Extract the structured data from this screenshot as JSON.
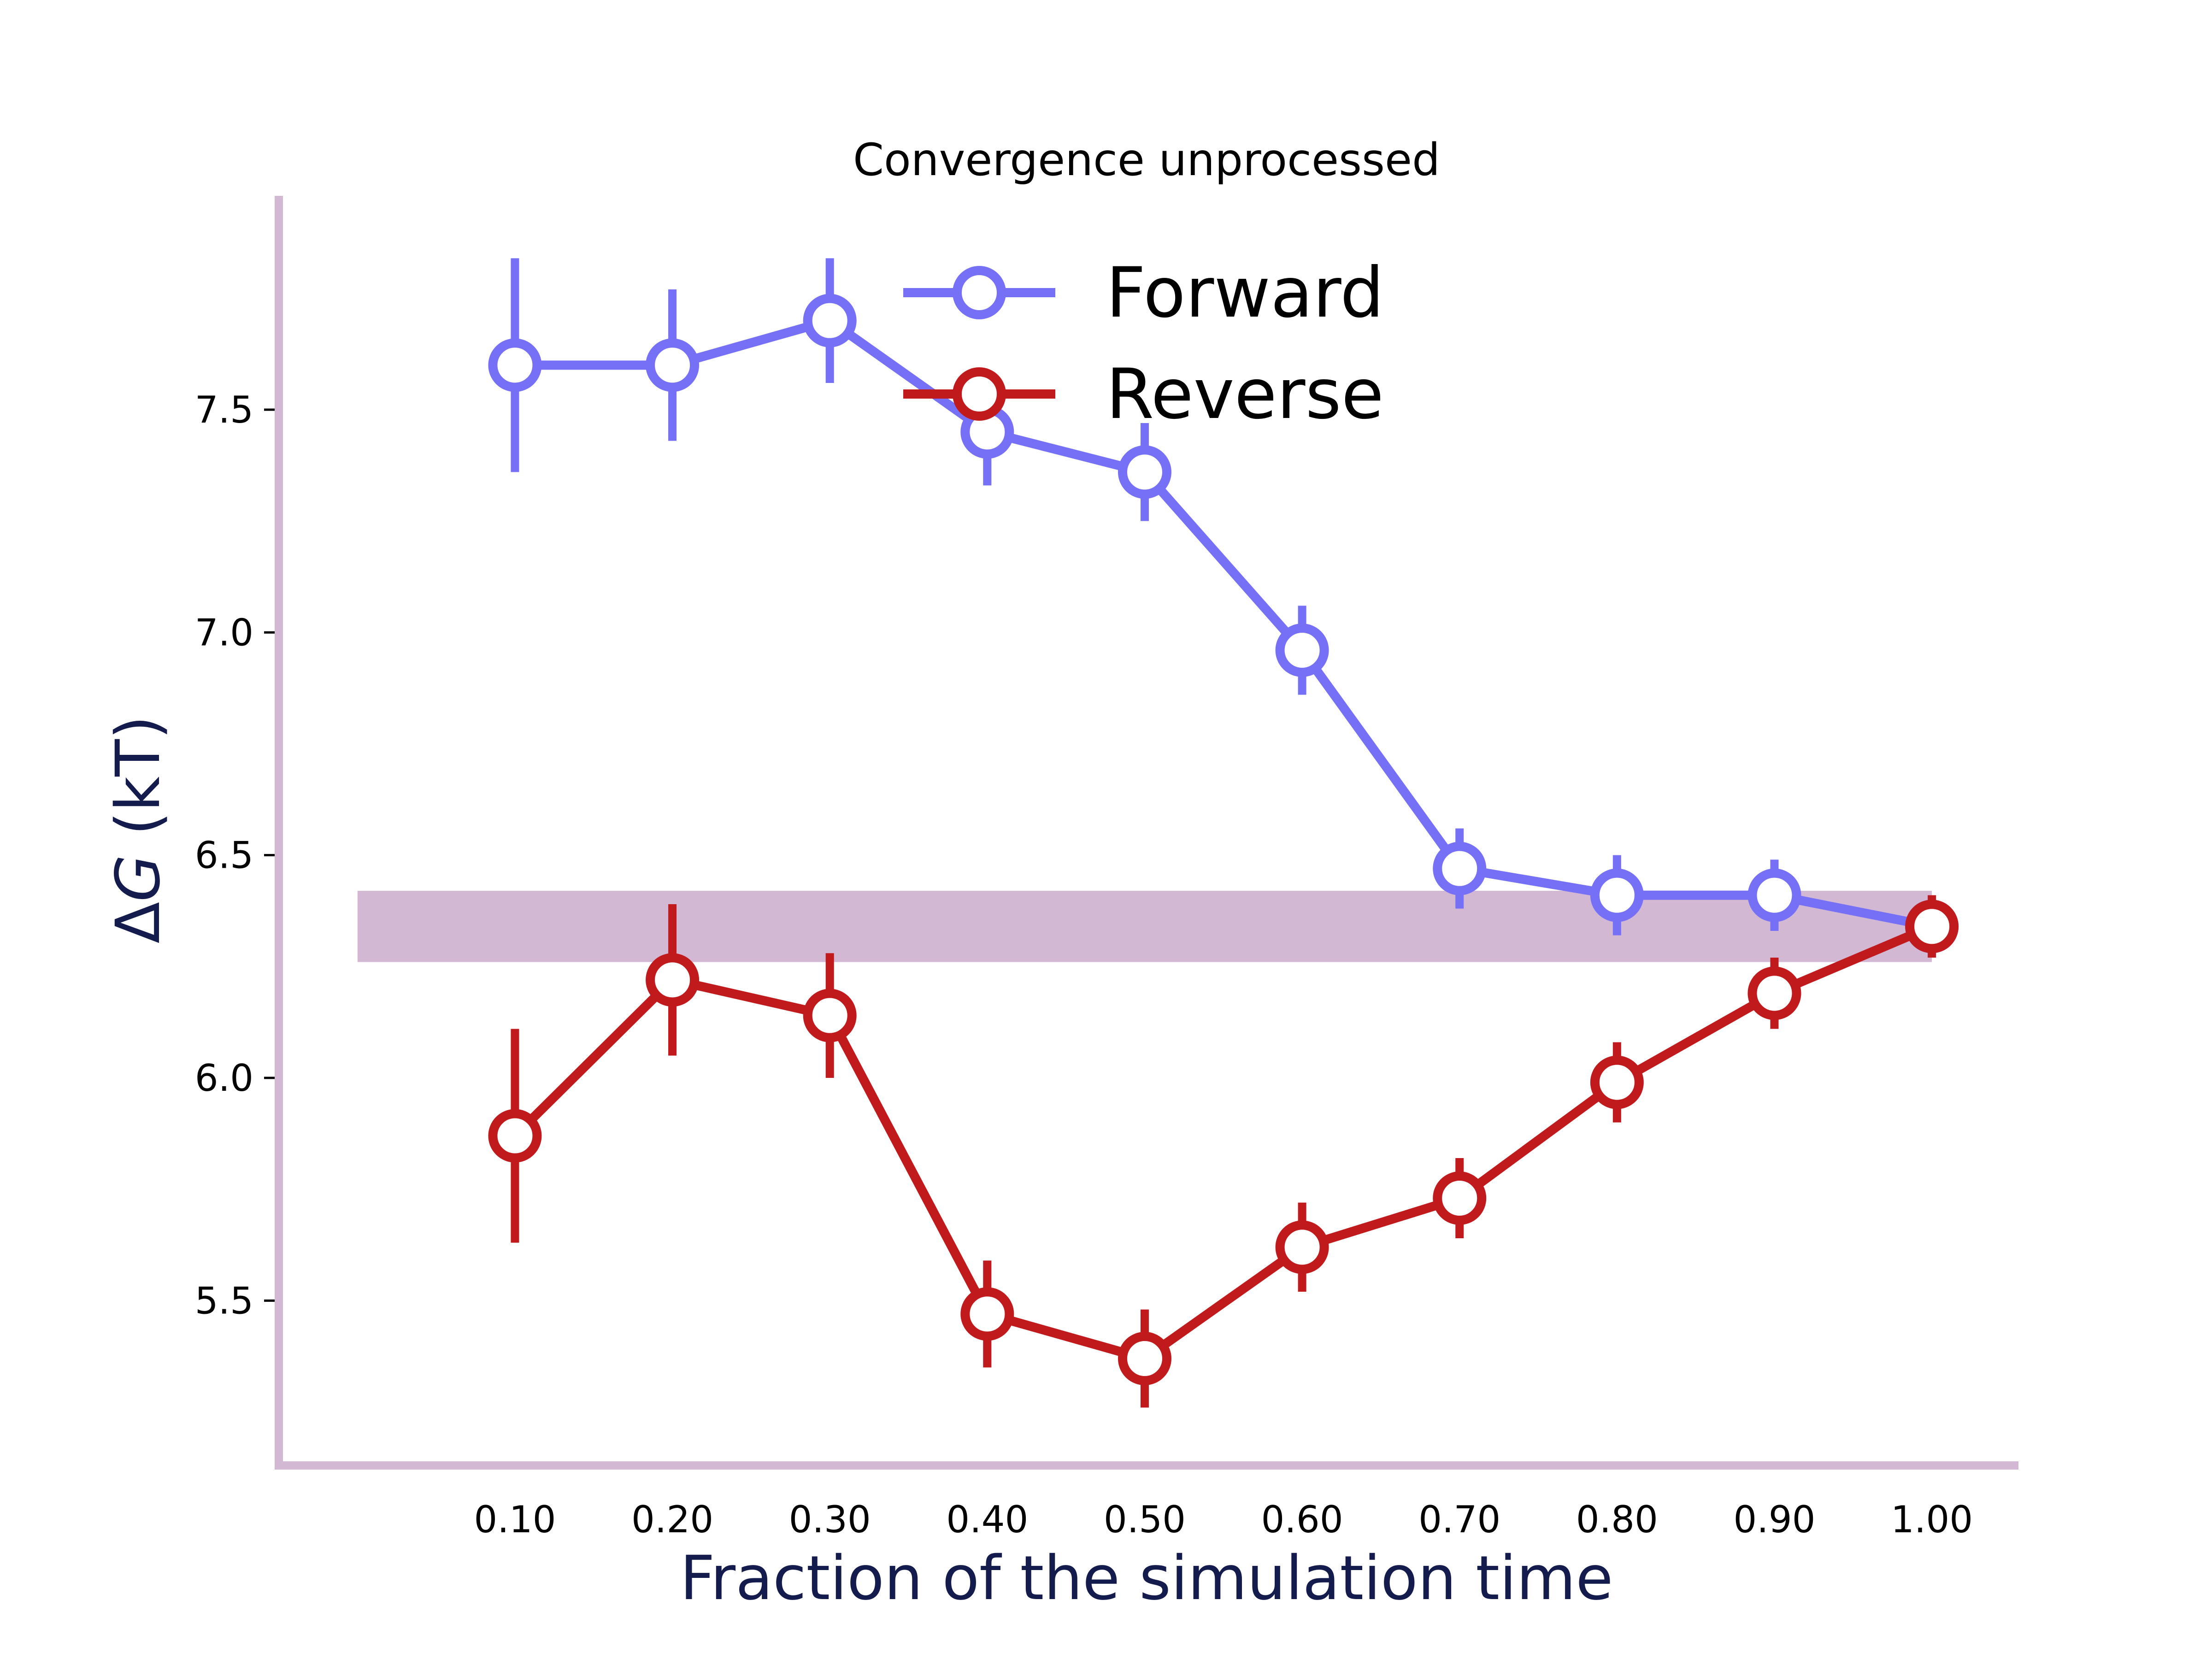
{
  "chart_data": {
    "type": "line",
    "title": "Convergence unprocessed",
    "xlabel": "Fraction of the simulation time",
    "ylabel_delta": "Δ",
    "ylabel_var": "G",
    "ylabel_unit": " (kT)",
    "x": [
      0.1,
      0.2,
      0.3,
      0.4,
      0.5,
      0.6,
      0.7,
      0.8,
      0.9,
      1.0
    ],
    "x_tick_labels": [
      "0.10",
      "0.20",
      "0.30",
      "0.40",
      "0.50",
      "0.60",
      "0.70",
      "0.80",
      "0.90",
      "1.00"
    ],
    "y_ticks": [
      5.5,
      6.0,
      6.5,
      7.0,
      7.5
    ],
    "y_tick_labels": [
      "5.5",
      "6.0",
      "6.5",
      "7.0",
      "7.5"
    ],
    "xlim": [
      -0.05,
      1.055
    ],
    "ylim": [
      5.13,
      7.98
    ],
    "band": {
      "y_low": 6.26,
      "y_high": 6.42,
      "x_start": 0.0,
      "x_end": 1.0,
      "color": "#d2b8d3"
    },
    "series": [
      {
        "name": "Forward",
        "color": "#7570f5",
        "values": [
          7.6,
          7.6,
          7.7,
          7.45,
          7.36,
          6.96,
          6.47,
          6.41,
          6.41,
          6.34
        ],
        "errors": [
          0.24,
          0.17,
          0.14,
          0.12,
          0.11,
          0.1,
          0.09,
          0.09,
          0.08,
          0.07
        ]
      },
      {
        "name": "Reverse",
        "color": "#c11a1d",
        "values": [
          5.87,
          6.22,
          6.14,
          5.47,
          5.37,
          5.62,
          5.73,
          5.99,
          6.19,
          6.34
        ],
        "errors": [
          0.24,
          0.17,
          0.14,
          0.12,
          0.11,
          0.1,
          0.09,
          0.09,
          0.08,
          0.07
        ]
      }
    ],
    "legend_position": "top-center",
    "grid": false,
    "spine_color": "#d2b8d3",
    "axis_label_color": "#141b4d"
  }
}
